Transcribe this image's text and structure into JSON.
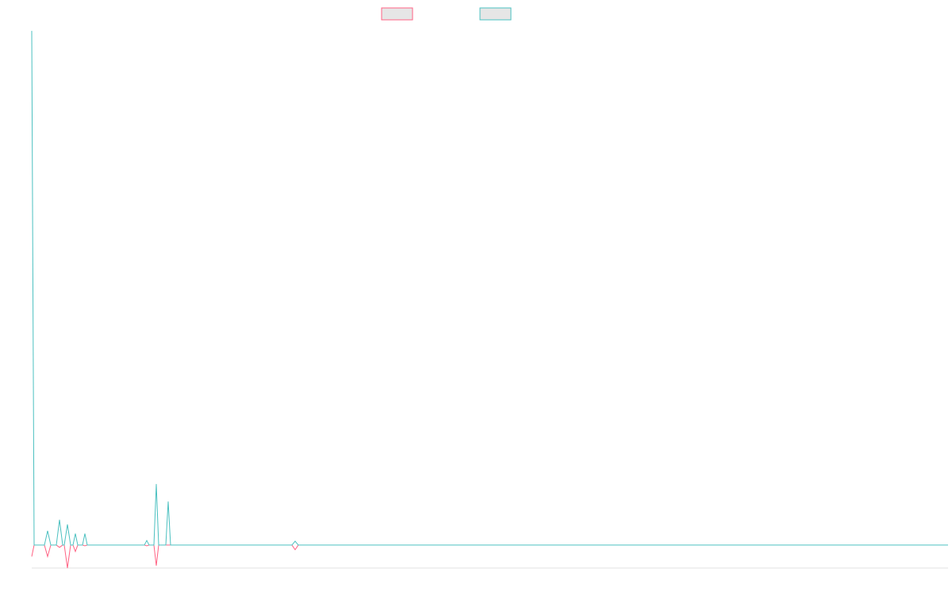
{
  "chart_data": {
    "type": "line",
    "x": [
      0,
      1.2,
      6.4,
      8,
      9.6,
      12.4,
      14,
      15.6,
      16.4,
      18,
      19.6,
      20.8,
      22,
      23.2,
      25.6,
      26.8,
      28,
      56.8,
      58,
      59.2,
      61.6,
      62.8,
      64,
      67.6,
      68.8,
      70,
      131.2,
      132.8,
      134.4,
      462
    ],
    "xlim": [
      0,
      462
    ],
    "ylim": [
      -1,
      22.5
    ],
    "series": [
      {
        "color": "#ff6384",
        "values": [
          -0.5,
          0,
          0,
          -0.5,
          0,
          0,
          -0.1,
          0,
          0,
          -1.0,
          0,
          0,
          -0.28,
          0,
          0,
          -0.03,
          0,
          0,
          -0.03,
          0,
          0,
          -0.9,
          0,
          0,
          0,
          0,
          0,
          -0.2,
          0,
          0
        ]
      },
      {
        "color": "#4bc0c0",
        "values": [
          22.4,
          0,
          0,
          0.62,
          0,
          0,
          1.1,
          0,
          0,
          0.9,
          0,
          0,
          0.5,
          0,
          0,
          0.5,
          0,
          0,
          0.2,
          0,
          0,
          2.66,
          0,
          0,
          1.9,
          0,
          0,
          0.17,
          0,
          0
        ]
      }
    ]
  }
}
